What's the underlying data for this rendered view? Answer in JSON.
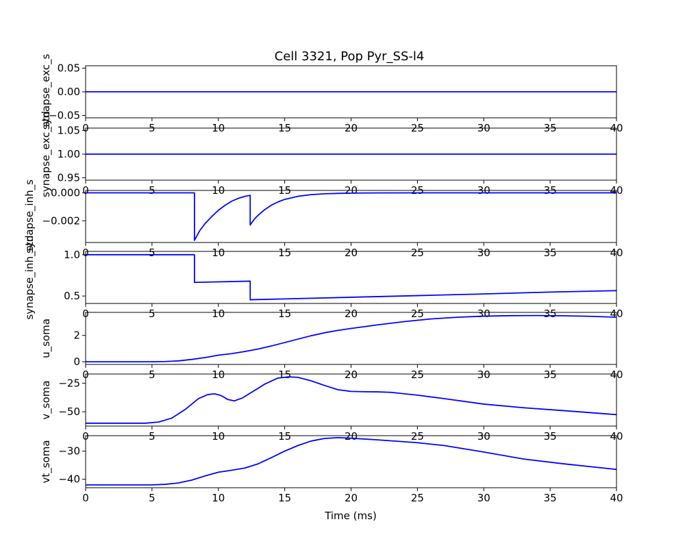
{
  "chart_data": {
    "type": "line",
    "title": "Cell 3321, Pop Pyr_SS-l4",
    "xlabel": "Time (ms)",
    "xlim": [
      0,
      40
    ],
    "xticks": [
      0,
      5,
      10,
      15,
      20,
      25,
      30,
      35,
      40
    ],
    "line_color": "#0000ff",
    "subplots": [
      {
        "ylabel": "synapse_exc_s",
        "ylim": [
          -0.055,
          0.055
        ],
        "yticks": [
          -0.05,
          0.0,
          0.05
        ],
        "ytick_labels": [
          "−0.05",
          "0.00",
          "0.05"
        ],
        "x": [
          0,
          40
        ],
        "y": [
          0,
          0
        ]
      },
      {
        "ylabel": "synapse_exc_std",
        "ylim": [
          0.945,
          1.055
        ],
        "yticks": [
          0.95,
          1.0,
          1.05
        ],
        "ytick_labels": [
          "0.95",
          "1.00",
          "1.05"
        ],
        "x": [
          0,
          40
        ],
        "y": [
          1,
          1
        ]
      },
      {
        "ylabel": "synapse_inh_s",
        "ylim": [
          -0.00355,
          0.00017
        ],
        "yticks": [
          -0.002,
          0.0
        ],
        "ytick_labels": [
          "−0.002",
          "0.000"
        ],
        "x": [
          0,
          8.2,
          8.2,
          8.6,
          9.0,
          9.5,
          10.0,
          10.5,
          11.0,
          11.5,
          12.0,
          12.4,
          12.4,
          12.7,
          13.0,
          13.5,
          14.0,
          14.5,
          15.0,
          16.0,
          17.0,
          18.0,
          19.0,
          20.0,
          22.0,
          25.0,
          30.0,
          40.0
        ],
        "y": [
          0,
          0,
          -0.0034,
          -0.0027,
          -0.0022,
          -0.0017,
          -0.00125,
          -0.0009,
          -0.0006,
          -0.0004,
          -0.00025,
          -0.00018,
          -0.0023,
          -0.0019,
          -0.0016,
          -0.0012,
          -0.00088,
          -0.00065,
          -0.00047,
          -0.00025,
          -0.00013,
          -7e-05,
          -4e-05,
          -2e-05,
          -7e-06,
          -2e-06,
          0,
          0
        ]
      },
      {
        "ylabel": "synapse_inh_std",
        "ylim": [
          0.41,
          1.04
        ],
        "yticks": [
          0.5,
          1.0
        ],
        "ytick_labels": [
          "0.5",
          "1.0"
        ],
        "x": [
          0,
          8.2,
          8.2,
          12.4,
          12.4,
          15,
          20,
          25,
          30,
          35,
          40
        ],
        "y": [
          1.0,
          1.0,
          0.665,
          0.68,
          0.455,
          0.465,
          0.485,
          0.505,
          0.525,
          0.548,
          0.565
        ]
      },
      {
        "ylabel": "u_soma",
        "ylim": [
          -0.2,
          3.75
        ],
        "yticks": [
          0,
          2
        ],
        "ytick_labels": [
          "0",
          "2"
        ],
        "x": [
          0,
          5,
          6,
          7,
          8,
          9,
          10,
          11,
          12,
          13,
          14,
          15,
          16,
          17,
          18,
          19,
          20,
          22,
          24,
          26,
          28,
          30,
          32,
          34,
          36,
          38,
          40
        ],
        "y": [
          0,
          0,
          0.02,
          0.07,
          0.18,
          0.32,
          0.5,
          0.62,
          0.78,
          0.97,
          1.2,
          1.46,
          1.72,
          1.98,
          2.2,
          2.38,
          2.53,
          2.8,
          3.05,
          3.25,
          3.38,
          3.46,
          3.5,
          3.51,
          3.49,
          3.45,
          3.38
        ]
      },
      {
        "ylabel": "v_soma",
        "ylim": [
          -62.5,
          -17
        ],
        "yticks": [
          -50,
          -25
        ],
        "ytick_labels": [
          "−50",
          "−25"
        ],
        "x": [
          0,
          4.5,
          5.5,
          6.5,
          7.5,
          8.5,
          9.2,
          9.7,
          10.2,
          10.7,
          11.2,
          11.8,
          12.5,
          13.5,
          14.5,
          15.3,
          16.0,
          17.0,
          18.0,
          19.0,
          20.0,
          21.0,
          22.0,
          23.0,
          25.0,
          27.0,
          30.0,
          33.0,
          36.0,
          40.0
        ],
        "y": [
          -60,
          -60,
          -59,
          -55.5,
          -48,
          -38.5,
          -35,
          -34.3,
          -35.8,
          -39.2,
          -40.5,
          -38,
          -33,
          -25.8,
          -20.5,
          -19.5,
          -19.9,
          -23,
          -27,
          -30.7,
          -32.2,
          -32.5,
          -32.6,
          -33,
          -35.5,
          -38.5,
          -43.3,
          -46.5,
          -49,
          -52.5
        ]
      },
      {
        "ylabel": "vt_soma",
        "ylim": [
          -43,
          -24.5
        ],
        "yticks": [
          -40,
          -30
        ],
        "ytick_labels": [
          "−40",
          "−30"
        ],
        "x": [
          0,
          5,
          6,
          7,
          8,
          9,
          10,
          11,
          12,
          13,
          14,
          15,
          16,
          17,
          18,
          19,
          20,
          22,
          25,
          27,
          30,
          33,
          36,
          40
        ],
        "y": [
          -42,
          -42,
          -41.8,
          -41.3,
          -40.3,
          -38.8,
          -37.5,
          -36.8,
          -36,
          -34.5,
          -32.3,
          -30,
          -28,
          -26.4,
          -25.5,
          -25.2,
          -25.4,
          -26,
          -27,
          -28,
          -30.3,
          -32.8,
          -34.5,
          -36.5
        ]
      }
    ]
  }
}
